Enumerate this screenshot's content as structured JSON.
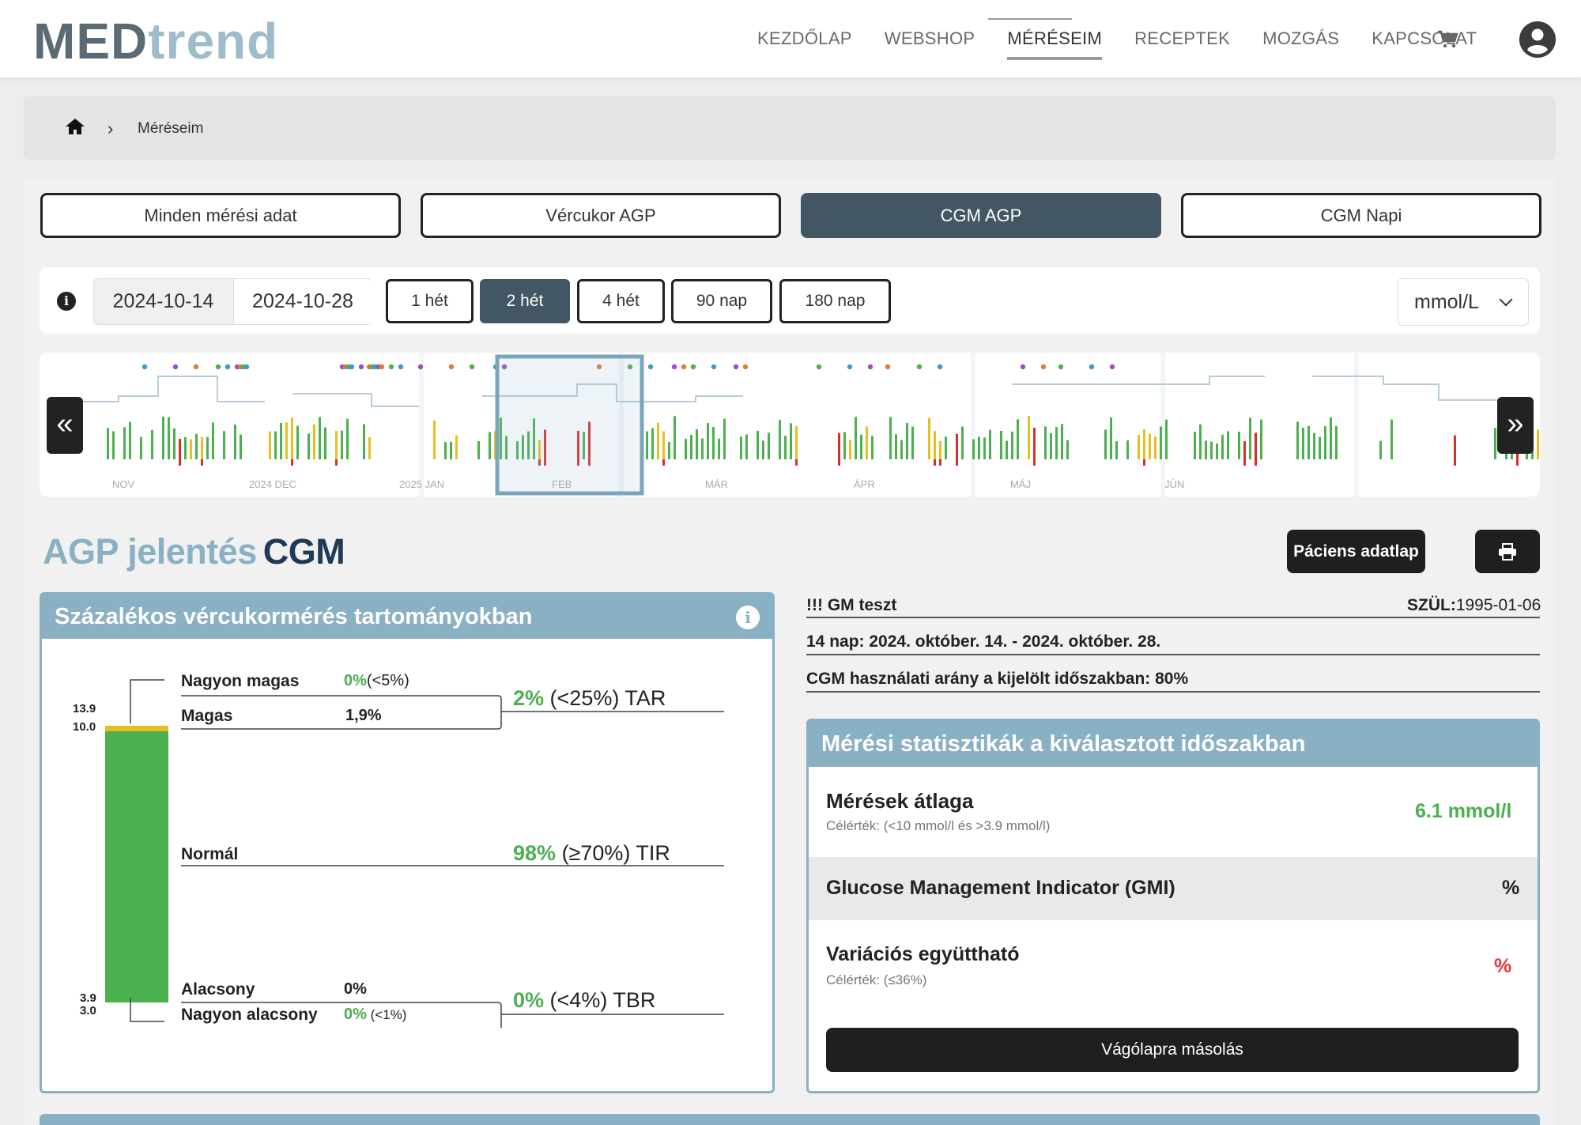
{
  "nav": {
    "logo_part1": "MED",
    "logo_part2": "trend",
    "items": [
      "KEZDŐLAP",
      "WEBSHOP",
      "MÉRÉSEIM",
      "RECEPTEK",
      "MOZGÁS",
      "KAPCSOLAT"
    ],
    "active": "MÉRÉSEIM",
    "icons": [
      "cart-icon",
      "user-icon"
    ]
  },
  "breadcrumb": {
    "current": "Méréseim"
  },
  "tabs": [
    "Minden mérési adat",
    "Vércukor AGP",
    "CGM AGP",
    "CGM Napi"
  ],
  "active_tab": "CGM AGP",
  "toolbar": {
    "date_from": "2024-10-14",
    "date_to": "2024-10-28",
    "ranges": [
      "1 hét",
      "2 hét",
      "4 hét",
      "90 nap",
      "180 nap"
    ],
    "active_range": "2 hét",
    "unit": "mmol/L"
  },
  "timeline": {
    "months": [
      "NOV",
      "2024 DEC",
      "2025 JAN",
      "FEB",
      "MÁR",
      "ÁPR",
      "MÁJ",
      "JÚN"
    ],
    "prev_label": "«",
    "next_label": "»"
  },
  "report": {
    "title_left": "AGP jelentés",
    "title_right": "CGM",
    "patient_button": "Páciens adatlap"
  },
  "ranges_panel": {
    "title": "Százalékos vércukormérés tartományokban",
    "thresholds": [
      "13.9",
      "10.0",
      "3.9",
      "3.0"
    ],
    "very_high": {
      "label": "Nagyon magas",
      "value": "0%",
      "target": "(<5%)"
    },
    "high": {
      "label": "Magas",
      "value": "1,9%"
    },
    "tar": {
      "value": "2%",
      "rest": "(<25%) TAR"
    },
    "normal": {
      "label": "Normál"
    },
    "tir": {
      "value": "98%",
      "rest": "(≥70%) TIR"
    },
    "low": {
      "label": "Alacsony",
      "value": "0%"
    },
    "very_low": {
      "label": "Nagyon alacsony",
      "value": "0%",
      "target": "(<1%)"
    },
    "tbr": {
      "value": "0%",
      "rest": "(<4%) TBR"
    },
    "bar_fractions": {
      "very_high": 0,
      "high": 0.019,
      "normal": 0.98,
      "low": 0,
      "very_low": 0
    },
    "colors": {
      "high": "#e6c020",
      "normal": "#4caf50"
    }
  },
  "patient": {
    "name": "!!! GM teszt",
    "dob_label": "SZÜL:",
    "dob": "1995-01-06",
    "period": "14 nap: 2024. október. 14. - 2024. október. 28.",
    "usage": "CGM használati arány a kijelölt időszakban: 80%"
  },
  "stats": {
    "title": "Mérési statisztikák a kiválasztott időszakban",
    "mean_label": "Mérések átlaga",
    "mean_target": "Célérték: (<10 mmol/l és >3.9 mmol/l)",
    "mean_value": "6.1 mmol/l",
    "gmi_label": "Glucose Management Indicator (GMI)",
    "gmi_value": "%",
    "cv_label": "Variációs együttható",
    "cv_target": "Célérték: (≤36%)",
    "cv_value": "%",
    "copy_button": "Vágólapra másolás"
  }
}
